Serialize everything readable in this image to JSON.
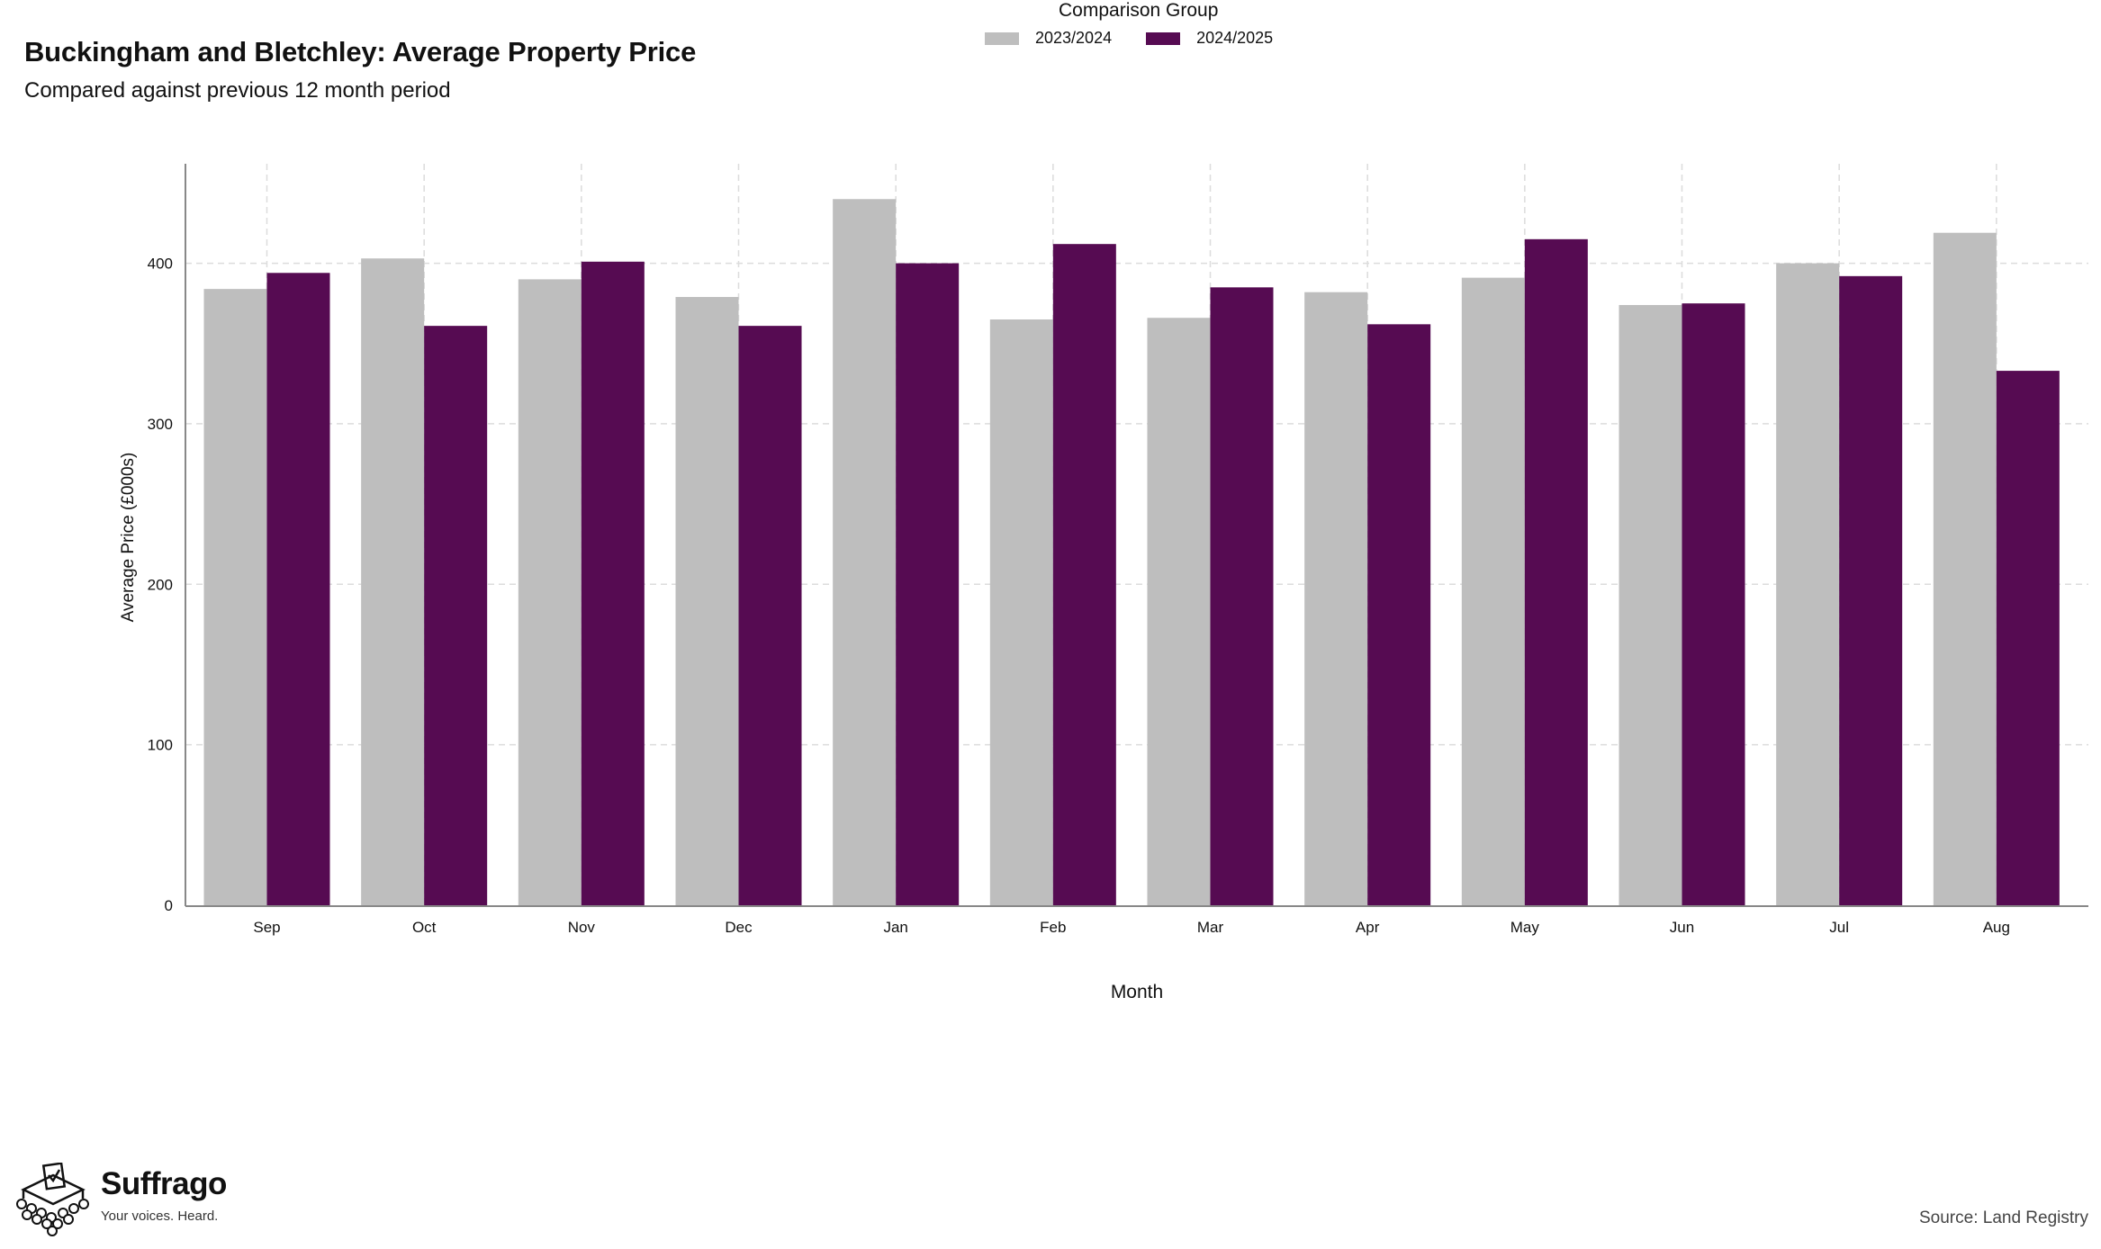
{
  "header": {
    "title": "Buckingham and Bletchley: Average Property Price",
    "subtitle": "Compared against previous 12 month period"
  },
  "chart_data": {
    "type": "bar",
    "title": "Buckingham and Bletchley: Average Property Price",
    "subtitle": "Compared against previous 12 month period",
    "xlabel": "Month",
    "ylabel": "Average Price (£000s)",
    "categories": [
      "Sep",
      "Oct",
      "Nov",
      "Dec",
      "Jan",
      "Feb",
      "Mar",
      "Apr",
      "May",
      "Jun",
      "Jul",
      "Aug"
    ],
    "ylim": [
      0,
      462
    ],
    "yticks": [
      0,
      100,
      200,
      300,
      400
    ],
    "grid": true,
    "legend_title": "Comparison Group",
    "legend_position": "bottom",
    "series": [
      {
        "name": "2023/2024",
        "color": "#bebebe",
        "values": [
          384,
          403,
          390,
          379,
          440,
          365,
          366,
          382,
          391,
          374,
          400,
          419
        ]
      },
      {
        "name": "2024/2025",
        "color": "#560b52",
        "values": [
          394,
          361,
          401,
          361,
          400,
          412,
          385,
          362,
          415,
          375,
          392,
          333
        ]
      }
    ]
  },
  "legend": {
    "title": "Comparison Group",
    "items": [
      {
        "label": "2023/2024",
        "color": "#bebebe"
      },
      {
        "label": "2024/2025",
        "color": "#560b52"
      }
    ]
  },
  "branding": {
    "name": "Suffrago",
    "tagline": "Your voices. Heard.",
    "logo_icon": "ballot-box-icon"
  },
  "footer": {
    "source": "Source: Land Registry"
  }
}
